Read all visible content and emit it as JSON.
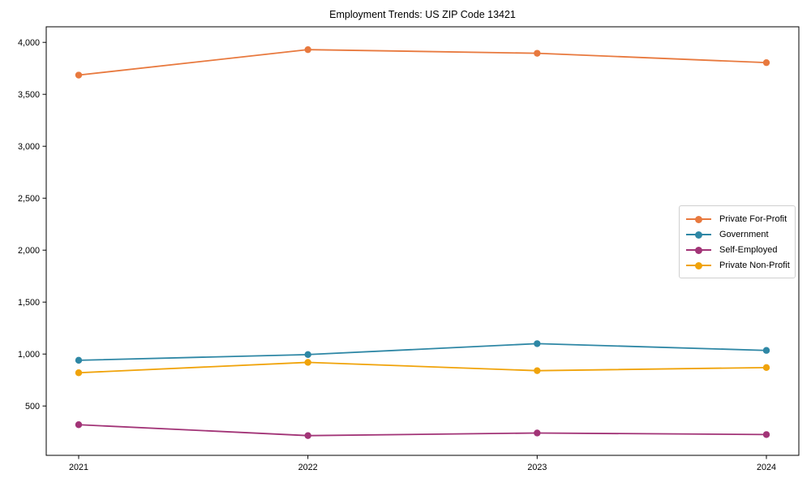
{
  "chart_data": {
    "type": "line",
    "title": "Employment Trends: US ZIP Code 13421",
    "categories": [
      "2021",
      "2022",
      "2023",
      "2024"
    ],
    "series": [
      {
        "name": "Private For-Profit",
        "color": "#e8793e",
        "values": [
          3685,
          3930,
          3895,
          3805
        ]
      },
      {
        "name": "Government",
        "color": "#2e87a5",
        "values": [
          940,
          995,
          1100,
          1035
        ]
      },
      {
        "name": "Self-Employed",
        "color": "#a23477",
        "values": [
          320,
          215,
          240,
          225
        ]
      },
      {
        "name": "Private Non-Profit",
        "color": "#f0a30a",
        "values": [
          820,
          920,
          840,
          870
        ]
      }
    ],
    "xlabel": "",
    "ylabel": "",
    "ylim": [
      25,
      4150
    ],
    "y_ticks": [
      500,
      1000,
      1500,
      2000,
      2500,
      3000,
      3500,
      4000
    ],
    "grid": false,
    "legend_position": "center right",
    "axes_box": true,
    "marker": "circle"
  }
}
